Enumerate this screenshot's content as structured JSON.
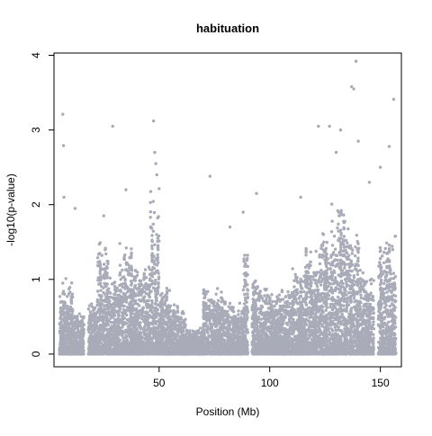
{
  "chart_data": {
    "type": "scatter",
    "title": "habituation",
    "xlabel": "Position (Mb)",
    "ylabel": "-log10(p-value)",
    "xlim": [
      2.5,
      159.5
    ],
    "ylim": [
      -0.17,
      4.03
    ],
    "x_ticks": [
      50,
      100,
      150
    ],
    "y_ticks": [
      0,
      1,
      2,
      3,
      4
    ],
    "x_tick_labels": [
      "50",
      "100",
      "150"
    ],
    "y_tick_labels": [
      "0",
      "1",
      "2",
      "3",
      "4"
    ],
    "point_color": "#a9abb8",
    "grid": false,
    "legend": "none",
    "notable_points": [
      {
        "x": 6.5,
        "y": 3.21
      },
      {
        "x": 6.8,
        "y": 2.79
      },
      {
        "x": 7.0,
        "y": 2.1
      },
      {
        "x": 12.0,
        "y": 1.95
      },
      {
        "x": 25.0,
        "y": 1.85
      },
      {
        "x": 29.0,
        "y": 3.05
      },
      {
        "x": 35.0,
        "y": 2.2
      },
      {
        "x": 47.5,
        "y": 3.12
      },
      {
        "x": 48.0,
        "y": 2.7
      },
      {
        "x": 48.5,
        "y": 2.55
      },
      {
        "x": 49.0,
        "y": 2.4
      },
      {
        "x": 73.0,
        "y": 2.38
      },
      {
        "x": 82.0,
        "y": 1.7
      },
      {
        "x": 88.0,
        "y": 1.9
      },
      {
        "x": 94.0,
        "y": 2.15
      },
      {
        "x": 114.0,
        "y": 2.1
      },
      {
        "x": 122.0,
        "y": 3.05
      },
      {
        "x": 127.0,
        "y": 3.05
      },
      {
        "x": 130.0,
        "y": 2.7
      },
      {
        "x": 132.0,
        "y": 3.0
      },
      {
        "x": 137.0,
        "y": 3.58
      },
      {
        "x": 138.0,
        "y": 3.55
      },
      {
        "x": 139.0,
        "y": 3.92
      },
      {
        "x": 140.0,
        "y": 2.85
      },
      {
        "x": 145.0,
        "y": 2.3
      },
      {
        "x": 150.0,
        "y": 2.5
      },
      {
        "x": 154.0,
        "y": 2.78
      },
      {
        "x": 156.0,
        "y": 3.41
      }
    ],
    "dense_regions": [
      {
        "x_start": 5.0,
        "x_end": 11.0,
        "typical_max": 1.05
      },
      {
        "x_start": 11.0,
        "x_end": 16.0,
        "typical_max": 0.6
      },
      {
        "x_start": 18.0,
        "x_end": 22.0,
        "typical_max": 0.7
      },
      {
        "x_start": 22.0,
        "x_end": 27.0,
        "typical_max": 1.6
      },
      {
        "x_start": 27.0,
        "x_end": 32.0,
        "typical_max": 1.1
      },
      {
        "x_start": 32.0,
        "x_end": 38.0,
        "typical_max": 1.5
      },
      {
        "x_start": 38.0,
        "x_end": 46.0,
        "typical_max": 1.3
      },
      {
        "x_start": 46.0,
        "x_end": 50.0,
        "typical_max": 2.35
      },
      {
        "x_start": 50.0,
        "x_end": 55.0,
        "typical_max": 0.9
      },
      {
        "x_start": 55.0,
        "x_end": 62.0,
        "typical_max": 0.7
      },
      {
        "x_start": 62.0,
        "x_end": 70.0,
        "typical_max": 0.35
      },
      {
        "x_start": 70.0,
        "x_end": 80.0,
        "typical_max": 0.9
      },
      {
        "x_start": 80.0,
        "x_end": 88.0,
        "typical_max": 0.7
      },
      {
        "x_start": 88.0,
        "x_end": 90.0,
        "typical_max": 1.5
      },
      {
        "x_start": 92.0,
        "x_end": 101.0,
        "typical_max": 1.0
      },
      {
        "x_start": 101.0,
        "x_end": 110.0,
        "typical_max": 0.9
      },
      {
        "x_start": 110.0,
        "x_end": 116.0,
        "typical_max": 1.2
      },
      {
        "x_start": 116.0,
        "x_end": 122.0,
        "typical_max": 1.5
      },
      {
        "x_start": 122.0,
        "x_end": 128.0,
        "typical_max": 1.8
      },
      {
        "x_start": 128.0,
        "x_end": 134.0,
        "typical_max": 2.2
      },
      {
        "x_start": 134.0,
        "x_end": 141.0,
        "typical_max": 1.8
      },
      {
        "x_start": 141.0,
        "x_end": 147.0,
        "typical_max": 1.2
      },
      {
        "x_start": 149.0,
        "x_end": 157.0,
        "typical_max": 1.6
      }
    ]
  }
}
